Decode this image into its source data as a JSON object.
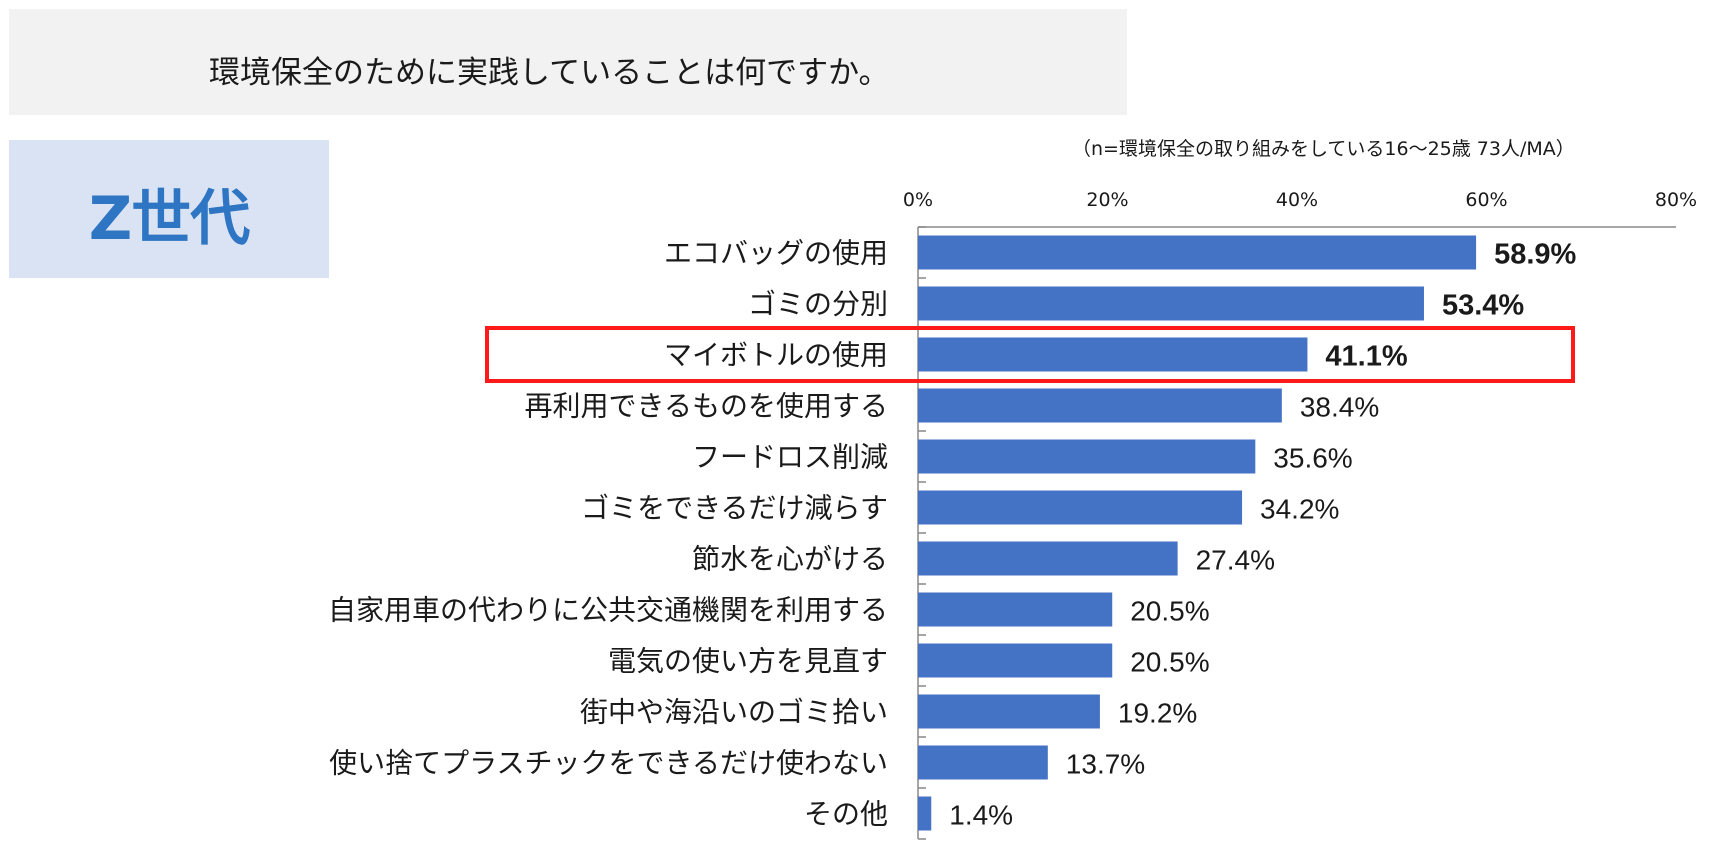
{
  "question": "環境保全のために実践していることは何ですか。",
  "segment_label": "Z世代",
  "sample_note": "（n=環境保全の取り組みをしている16～25歳 73人/MA）",
  "colors": {
    "bar": "#4472c4",
    "highlight": "#ff1a1a",
    "segment": "#2e75c3"
  },
  "chart_data": {
    "type": "bar",
    "orientation": "horizontal",
    "categories": [
      "エコバッグの使用",
      "ゴミの分別",
      "マイボトルの使用",
      "再利用できるものを使用する",
      "フードロス削減",
      "ゴミをできるだけ減らす",
      "節水を心がける",
      "自家用車の代わりに公共交通機関を利用する",
      "電気の使い方を見直す",
      "街中や海沿いのゴミ拾い",
      "使い捨てプラスチックをできるだけ使わない",
      "その他"
    ],
    "values": [
      58.9,
      53.4,
      41.1,
      38.4,
      35.6,
      34.2,
      27.4,
      20.5,
      20.5,
      19.2,
      13.7,
      1.4
    ],
    "value_labels": [
      "58.9%",
      "53.4%",
      "41.1%",
      "38.4%",
      "35.6%",
      "34.2%",
      "27.4%",
      "20.5%",
      "20.5%",
      "19.2%",
      "13.7%",
      "1.4%"
    ],
    "bold_labels": [
      0,
      1,
      2
    ],
    "highlighted_category": 2,
    "xlim": [
      0,
      80
    ],
    "x_ticks": [
      0,
      20,
      40,
      60,
      80
    ],
    "x_tick_labels": [
      "0%",
      "20%",
      "40%",
      "60%",
      "80%"
    ],
    "axis_position": "top",
    "grid": false,
    "legend": "none"
  }
}
